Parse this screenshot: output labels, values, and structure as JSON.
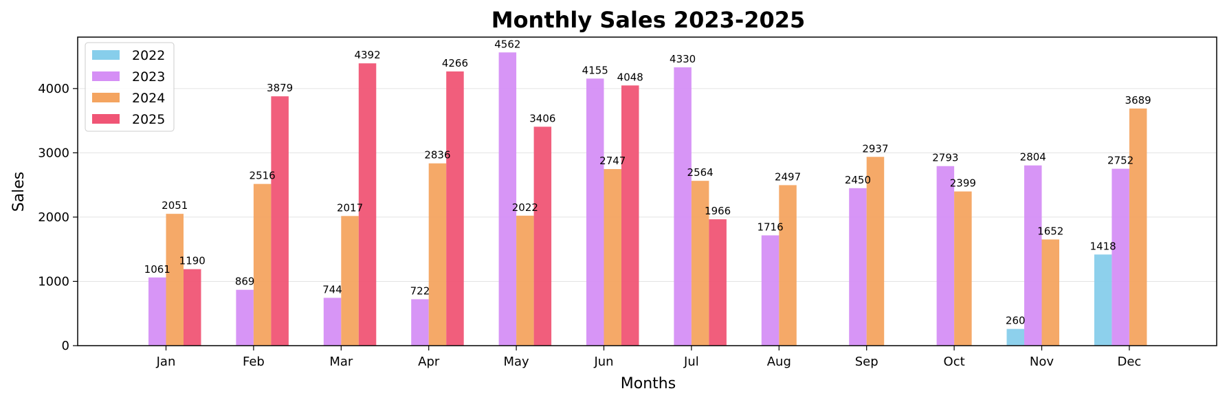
{
  "chart_data": {
    "type": "bar",
    "title": "Monthly Sales 2023-2025",
    "xlabel": "Months",
    "ylabel": "Sales",
    "ylim": [
      0,
      4800
    ],
    "yticks": [
      0,
      1000,
      2000,
      3000,
      4000
    ],
    "grid": "horizontal",
    "legend_position": "top-left",
    "categories": [
      "Jan",
      "Feb",
      "Mar",
      "Apr",
      "May",
      "Jun",
      "Jul",
      "Aug",
      "Sep",
      "Oct",
      "Nov",
      "Dec"
    ],
    "series": [
      {
        "name": "2022",
        "color": "#87CEEB",
        "values": [
          null,
          null,
          null,
          null,
          null,
          null,
          null,
          null,
          null,
          null,
          260,
          1418
        ]
      },
      {
        "name": "2023",
        "color": "#D58FF5",
        "values": [
          1061,
          869,
          744,
          722,
          4562,
          4155,
          4330,
          1716,
          2450,
          2793,
          2804,
          2752
        ]
      },
      {
        "name": "2024",
        "color": "#F4A460",
        "values": [
          2051,
          2516,
          2017,
          2836,
          2022,
          2747,
          2564,
          2497,
          2937,
          2399,
          1652,
          3689
        ]
      },
      {
        "name": "2025",
        "color": "#F05575",
        "values": [
          1190,
          3879,
          4392,
          4266,
          3406,
          4048,
          1966,
          null,
          null,
          null,
          null,
          null
        ]
      }
    ]
  }
}
